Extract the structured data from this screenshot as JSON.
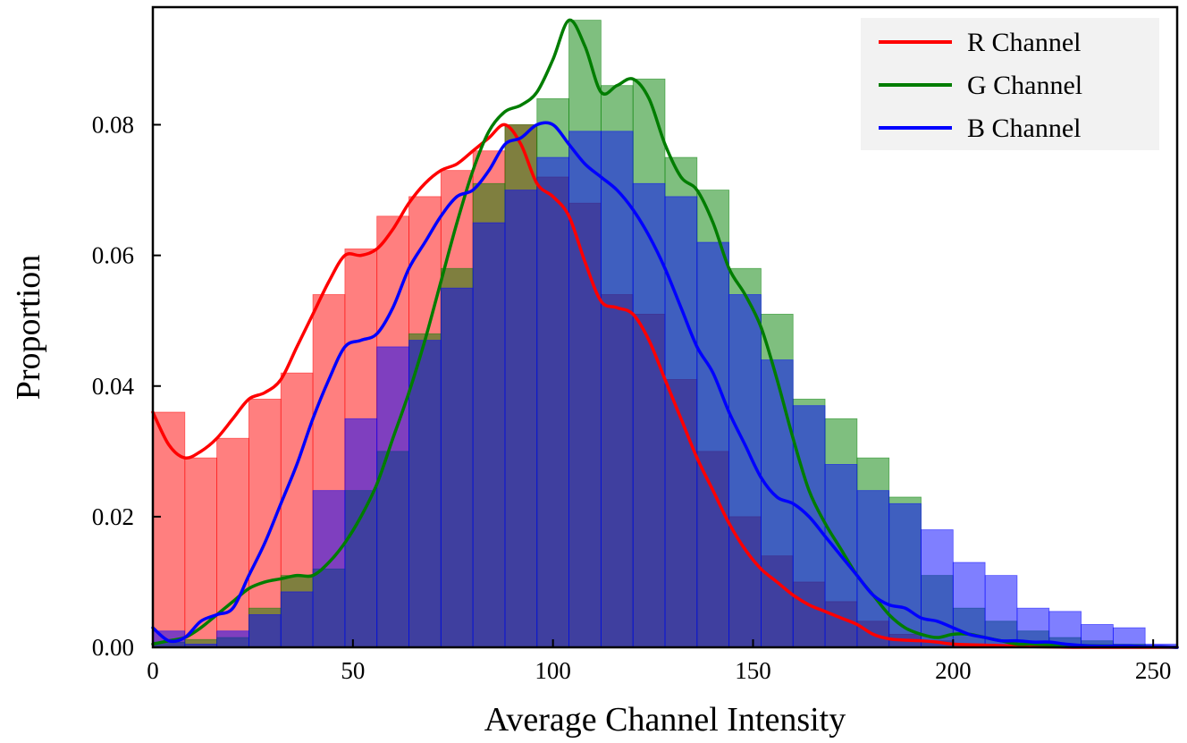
{
  "chart_data": {
    "type": "bar",
    "subtype": "overlaid histogram with KDE curves",
    "title": "",
    "xlabel": "Average Channel Intensity",
    "ylabel": "Proportion",
    "xlim": [
      0,
      256
    ],
    "ylim": [
      0,
      0.098
    ],
    "xticks": [
      0,
      50,
      100,
      150,
      200,
      250
    ],
    "xtick_labels": [
      "0",
      "50",
      "100",
      "150",
      "200",
      "250"
    ],
    "yticks": [
      0,
      0.02,
      0.04,
      0.06,
      0.08
    ],
    "ytick_labels": [
      "0.00",
      "0.02",
      "0.04",
      "0.06",
      "0.08"
    ],
    "bin_edges": [
      0,
      8,
      16,
      24,
      32,
      40,
      48,
      56,
      64,
      72,
      80,
      88,
      96,
      104,
      112,
      120,
      128,
      136,
      144,
      152,
      160,
      168,
      176,
      184,
      192,
      200,
      208,
      216,
      224,
      232,
      240,
      248,
      256
    ],
    "legend_position": "top-right",
    "series": [
      {
        "name": "R Channel",
        "color": "#ff0000",
        "bar_color": "#ff0000",
        "bar_values": [
          0.036,
          0.029,
          0.032,
          0.038,
          0.042,
          0.054,
          0.061,
          0.066,
          0.069,
          0.073,
          0.076,
          0.08,
          0.072,
          0.068,
          0.054,
          0.051,
          0.041,
          0.03,
          0.02,
          0.014,
          0.01,
          0.007,
          0.004,
          0.002,
          0.001,
          0.0005,
          0.0003,
          0.0002,
          0.0001,
          0,
          0,
          0
        ],
        "kde_x": [
          0,
          4,
          8,
          12,
          16,
          20,
          24,
          28,
          32,
          36,
          40,
          44,
          48,
          52,
          56,
          60,
          64,
          68,
          72,
          76,
          80,
          84,
          88,
          92,
          96,
          100,
          104,
          108,
          112,
          116,
          120,
          124,
          128,
          132,
          136,
          140,
          144,
          148,
          152,
          156,
          160,
          164,
          168,
          172,
          176,
          180,
          184,
          188,
          192,
          196,
          200,
          210,
          220,
          230,
          240,
          250,
          256
        ],
        "kde_y": [
          0.036,
          0.031,
          0.029,
          0.03,
          0.032,
          0.035,
          0.038,
          0.039,
          0.041,
          0.046,
          0.051,
          0.056,
          0.06,
          0.06,
          0.061,
          0.064,
          0.068,
          0.071,
          0.073,
          0.074,
          0.076,
          0.078,
          0.08,
          0.077,
          0.071,
          0.069,
          0.066,
          0.059,
          0.053,
          0.052,
          0.051,
          0.047,
          0.041,
          0.035,
          0.029,
          0.024,
          0.019,
          0.015,
          0.012,
          0.01,
          0.008,
          0.0065,
          0.0055,
          0.0045,
          0.0035,
          0.002,
          0.0013,
          0.0011,
          0.001,
          0.0008,
          0.0005,
          0.0003,
          0.0001,
          0,
          0,
          0,
          0
        ]
      },
      {
        "name": "G Channel",
        "color": "#007d00",
        "bar_color": "#008000",
        "bar_values": [
          0.0008,
          0.0012,
          0.0015,
          0.006,
          0.011,
          0.012,
          0.024,
          0.03,
          0.048,
          0.058,
          0.071,
          0.08,
          0.084,
          0.096,
          0.086,
          0.087,
          0.075,
          0.07,
          0.058,
          0.051,
          0.038,
          0.035,
          0.029,
          0.023,
          0.011,
          0.006,
          0.004,
          0.0025,
          0.0015,
          0.001,
          0.0005,
          0
        ],
        "kde_x": [
          0,
          4,
          8,
          12,
          16,
          20,
          24,
          28,
          32,
          36,
          40,
          44,
          48,
          52,
          56,
          60,
          64,
          68,
          72,
          76,
          80,
          84,
          88,
          92,
          96,
          100,
          104,
          108,
          112,
          116,
          120,
          124,
          128,
          132,
          136,
          140,
          144,
          148,
          152,
          156,
          160,
          164,
          168,
          172,
          176,
          180,
          184,
          188,
          192,
          196,
          200,
          204,
          208,
          212,
          216,
          220,
          230,
          240,
          250,
          256
        ],
        "kde_y": [
          0.0005,
          0.001,
          0.0015,
          0.003,
          0.005,
          0.007,
          0.009,
          0.01,
          0.0105,
          0.011,
          0.011,
          0.013,
          0.016,
          0.02,
          0.025,
          0.032,
          0.039,
          0.047,
          0.056,
          0.065,
          0.073,
          0.079,
          0.082,
          0.083,
          0.085,
          0.09,
          0.096,
          0.092,
          0.085,
          0.086,
          0.087,
          0.084,
          0.077,
          0.072,
          0.07,
          0.065,
          0.058,
          0.054,
          0.049,
          0.041,
          0.032,
          0.024,
          0.019,
          0.015,
          0.011,
          0.008,
          0.005,
          0.003,
          0.002,
          0.0015,
          0.002,
          0.002,
          0.0015,
          0.001,
          0.0005,
          0.0005,
          0.0003,
          0.0002,
          0.0001,
          0
        ]
      },
      {
        "name": "B Channel",
        "color": "#0000ff",
        "bar_color": "#0000ff",
        "bar_values": [
          0.0025,
          0.0005,
          0.0025,
          0.005,
          0.0085,
          0.024,
          0.035,
          0.046,
          0.047,
          0.055,
          0.065,
          0.07,
          0.075,
          0.079,
          0.079,
          0.071,
          0.069,
          0.062,
          0.054,
          0.044,
          0.037,
          0.028,
          0.024,
          0.022,
          0.018,
          0.013,
          0.011,
          0.006,
          0.0055,
          0.0035,
          0.003,
          0.0005
        ],
        "kde_x": [
          0,
          4,
          8,
          12,
          16,
          20,
          24,
          28,
          32,
          36,
          40,
          44,
          48,
          52,
          56,
          60,
          64,
          68,
          72,
          76,
          80,
          84,
          88,
          92,
          96,
          100,
          104,
          108,
          112,
          116,
          120,
          124,
          128,
          132,
          136,
          140,
          144,
          148,
          152,
          156,
          160,
          164,
          168,
          172,
          176,
          180,
          184,
          188,
          192,
          196,
          200,
          204,
          208,
          212,
          216,
          220,
          224,
          228,
          232,
          236,
          240,
          244,
          248,
          252,
          256
        ],
        "kde_y": [
          0.003,
          0.001,
          0.0015,
          0.004,
          0.005,
          0.006,
          0.011,
          0.016,
          0.022,
          0.028,
          0.035,
          0.041,
          0.046,
          0.047,
          0.048,
          0.052,
          0.058,
          0.062,
          0.066,
          0.069,
          0.07,
          0.073,
          0.077,
          0.078,
          0.08,
          0.08,
          0.077,
          0.074,
          0.072,
          0.07,
          0.067,
          0.063,
          0.058,
          0.052,
          0.046,
          0.042,
          0.036,
          0.031,
          0.026,
          0.023,
          0.022,
          0.02,
          0.017,
          0.014,
          0.011,
          0.008,
          0.0065,
          0.006,
          0.0045,
          0.004,
          0.003,
          0.002,
          0.0015,
          0.001,
          0.001,
          0.0008,
          0.0008,
          0.0005,
          0.0003,
          0.0002,
          0.0002,
          0.0002,
          0.0001,
          0.0001,
          0
        ]
      }
    ]
  }
}
